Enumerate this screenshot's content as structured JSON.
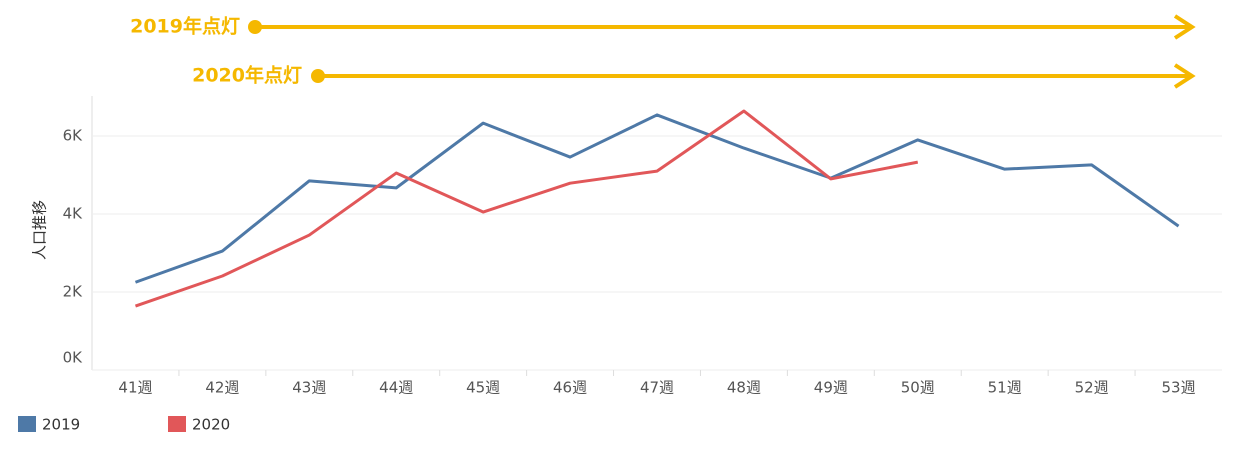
{
  "chart_data": {
    "type": "line",
    "annotations": [
      "2019年点灯",
      "2020年点灯"
    ],
    "y_label": "人口推移",
    "categories": [
      "41週",
      "42週",
      "43週",
      "44週",
      "45週",
      "46週",
      "47週",
      "48週",
      "49週",
      "50週",
      "51週",
      "52週",
      "53週"
    ],
    "series": [
      {
        "name": "2019",
        "color": "#4e79a7",
        "values": [
          2250,
          3050,
          4850,
          4670,
          6330,
          5460,
          6540,
          5690,
          4920,
          5900,
          5150,
          5260,
          3690
        ]
      },
      {
        "name": "2020",
        "color": "#e15759",
        "values": [
          1640,
          2410,
          3460,
          5050,
          4050,
          4790,
          5100,
          6640,
          4900,
          5330,
          null,
          null,
          null
        ]
      }
    ],
    "ylim": [
      0,
      7000
    ],
    "yticks": [
      {
        "value": 0,
        "label": "0K"
      },
      {
        "value": 2000,
        "label": "2K"
      },
      {
        "value": 4000,
        "label": "4K"
      },
      {
        "value": 6000,
        "label": "6K"
      }
    ],
    "grid": true
  }
}
